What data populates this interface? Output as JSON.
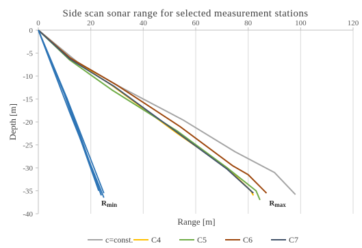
{
  "chart_data": {
    "type": "line",
    "title": "Side scan sonar range for selected measurement stations",
    "xlabel": "Range [m]",
    "ylabel": "Depth [m]",
    "xlim": [
      0,
      120
    ],
    "ylim": [
      -40,
      0
    ],
    "x_ticks": [
      0,
      20,
      40,
      60,
      80,
      100,
      120
    ],
    "y_ticks": [
      0,
      -5,
      -10,
      -15,
      -20,
      -25,
      -30,
      -35,
      -40
    ],
    "grid": "vertical",
    "legend_position": "bottom",
    "colors": {
      "c=const.": "#a5a5a5",
      "C4": "#ffc000",
      "C5": "#70ad47",
      "C6": "#9e480e",
      "C7": "#44546a",
      "rmin": "#2e75b6",
      "gridline": "#d9d9d9",
      "axis": "#bfbfbf",
      "text": "#595959"
    },
    "series": [
      {
        "name": "c=const.",
        "points": [
          [
            0,
            0
          ],
          [
            15,
            -7
          ],
          [
            30,
            -12
          ],
          [
            55,
            -19.5
          ],
          [
            75,
            -26.5
          ],
          [
            90,
            -31
          ],
          [
            98,
            -35.8
          ]
        ],
        "rmin": [
          [
            0,
            0
          ],
          [
            12,
            -18
          ],
          [
            25,
            -36.5
          ]
        ]
      },
      {
        "name": "C4",
        "points": [
          [
            0,
            0
          ],
          [
            12,
            -6
          ],
          [
            28,
            -12
          ],
          [
            53,
            -22.5
          ],
          [
            72,
            -30
          ],
          [
            81,
            -35
          ],
          [
            82,
            -36
          ]
        ],
        "rmin": [
          [
            0,
            0
          ],
          [
            10,
            -14
          ],
          [
            23,
            -35
          ]
        ]
      },
      {
        "name": "C5",
        "points": [
          [
            0,
            0
          ],
          [
            12,
            -6.5
          ],
          [
            28,
            -13
          ],
          [
            53,
            -22
          ],
          [
            72,
            -30
          ],
          [
            83,
            -35
          ],
          [
            84.5,
            -37
          ]
        ],
        "rmin": [
          [
            0,
            0
          ],
          [
            11,
            -15
          ],
          [
            24,
            -36
          ]
        ]
      },
      {
        "name": "C6",
        "points": [
          [
            0,
            0
          ],
          [
            12,
            -6
          ],
          [
            30,
            -12
          ],
          [
            54,
            -21
          ],
          [
            74,
            -29.5
          ],
          [
            80,
            -31.5
          ],
          [
            87,
            -35.5
          ]
        ],
        "rmin": [
          [
            0,
            0
          ],
          [
            11,
            -15
          ],
          [
            25,
            -35.5
          ]
        ]
      },
      {
        "name": "C7",
        "points": [
          [
            0,
            0
          ],
          [
            12,
            -6.3
          ],
          [
            29,
            -12.3
          ],
          [
            53,
            -22.3
          ],
          [
            72,
            -30.3
          ],
          [
            82,
            -35.5
          ]
        ],
        "rmin": [
          [
            0,
            0
          ],
          [
            11,
            -15
          ],
          [
            24,
            -36
          ]
        ]
      }
    ],
    "annotations": [
      {
        "text": "Rmin",
        "x": 24,
        "y": -38.2
      },
      {
        "text": "Rmax",
        "x": 88,
        "y": -38.2
      }
    ]
  }
}
